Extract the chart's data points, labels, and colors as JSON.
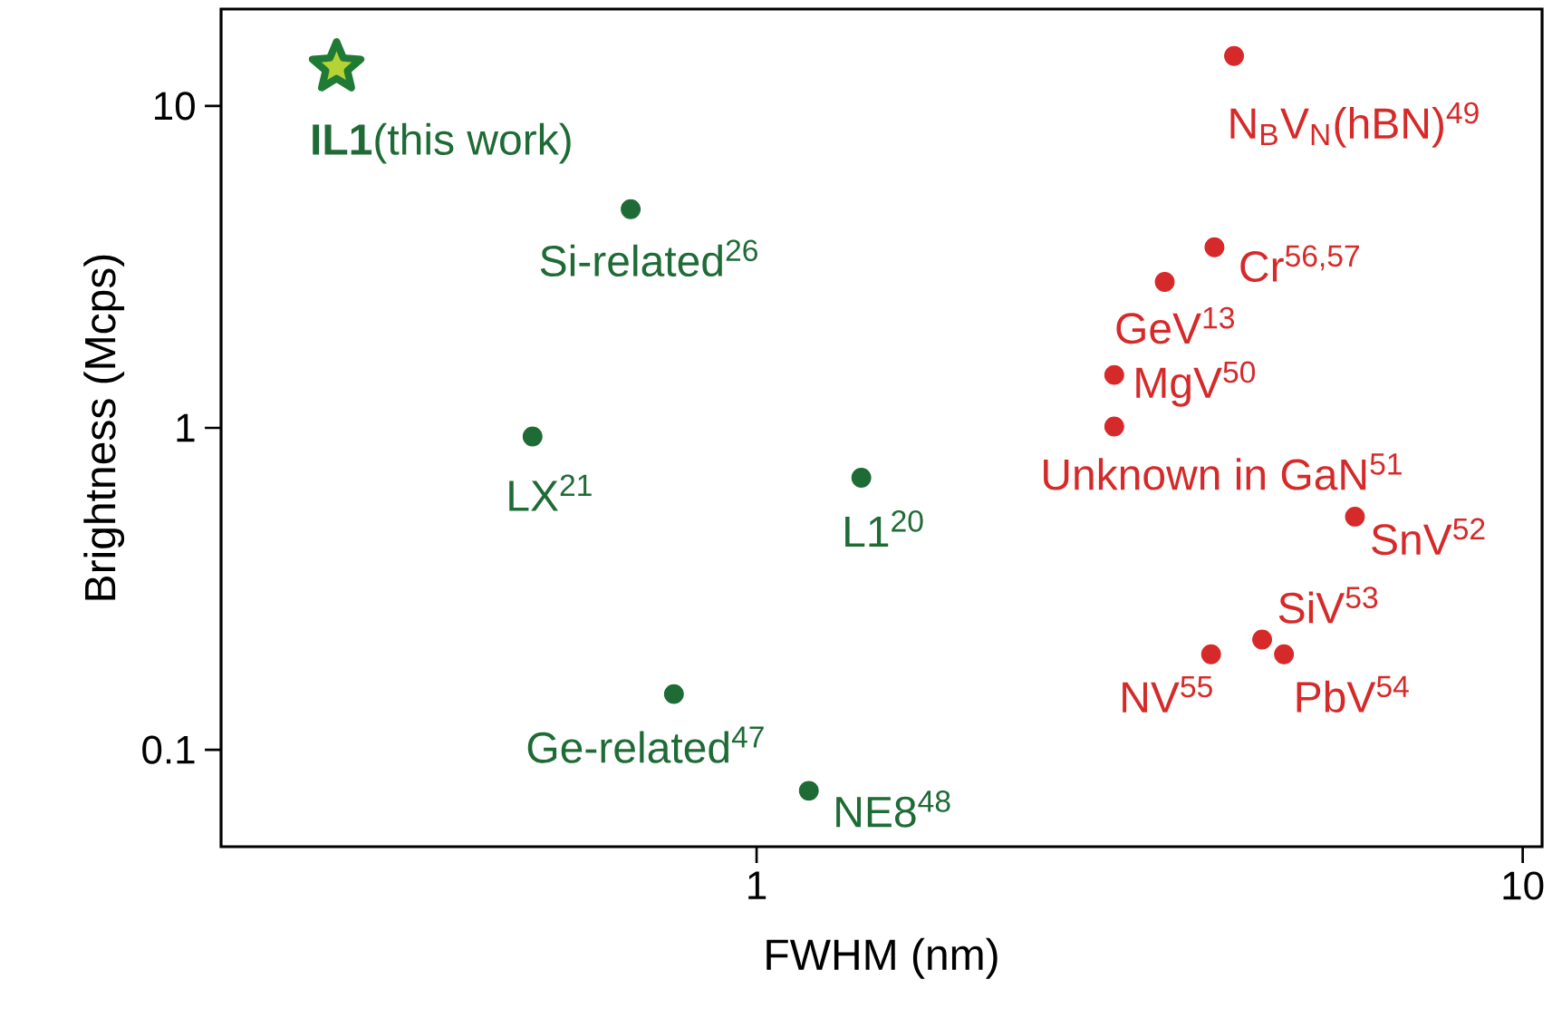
{
  "chart_data": {
    "type": "scatter",
    "xlabel": "FWHM (nm)",
    "ylabel": "Brightness (Mcps)",
    "log": "xy",
    "xlim": [
      0.2,
      10.6
    ],
    "ylim": [
      0.05,
      20
    ],
    "xticks": [
      1,
      10
    ],
    "yticks": [
      0.1,
      1,
      10
    ],
    "grid": false,
    "series": [
      {
        "color": "#b5d334",
        "marker": "star",
        "x": [
          0.283
        ],
        "values": [
          13.2
        ]
      },
      {
        "color": "#1e6b35",
        "marker": "circle",
        "x": [
          0.685,
          0.51,
          1.37,
          0.78,
          1.17
        ],
        "values": [
          4.78,
          0.94,
          0.7,
          0.149,
          0.0746
        ]
      },
      {
        "color": "#d62a2a",
        "marker": "circle",
        "x": [
          4.2,
          3.96,
          3.41,
          2.93,
          2.93,
          6.04,
          4.57,
          3.92,
          4.88
        ],
        "values": [
          14.3,
          3.64,
          2.84,
          1.46,
          1.01,
          0.53,
          0.22,
          0.198,
          0.198
        ]
      }
    ],
    "annotations": [
      {
        "text": "**IL1**(this work)",
        "x": 0.283,
        "y": 13.2
      },
      {
        "text": "Si-related$^{26}$",
        "x": 0.685,
        "y": 4.78
      },
      {
        "text": "LX$^{21}$",
        "x": 0.51,
        "y": 0.94
      },
      {
        "text": "L1$^{20}$",
        "x": 1.37,
        "y": 0.7
      },
      {
        "text": "Ge-related$^{47}$",
        "x": 0.78,
        "y": 0.149
      },
      {
        "text": "NE8$^{48}$",
        "x": 1.17,
        "y": 0.0746
      },
      {
        "text": "N$_{B}$V$_{N}$(hBN)$^{49}$",
        "x": 4.2,
        "y": 14.3
      },
      {
        "text": "Cr$^{56,57}$",
        "x": 3.96,
        "y": 3.64
      },
      {
        "text": "GeV$^{13}$",
        "x": 3.41,
        "y": 2.84
      },
      {
        "text": "MgV$^{50}$",
        "x": 2.93,
        "y": 1.46
      },
      {
        "text": "Unknown in GaN$^{51}$",
        "x": 2.93,
        "y": 1.01
      },
      {
        "text": "SnV$^{52}$",
        "x": 6.04,
        "y": 0.53
      },
      {
        "text": "SiV$^{53}$",
        "x": 4.57,
        "y": 0.22
      },
      {
        "text": "NV$^{55}$",
        "x": 3.92,
        "y": 0.198
      },
      {
        "text": "PbV$^{54}$",
        "x": 4.88,
        "y": 0.198
      }
    ]
  }
}
